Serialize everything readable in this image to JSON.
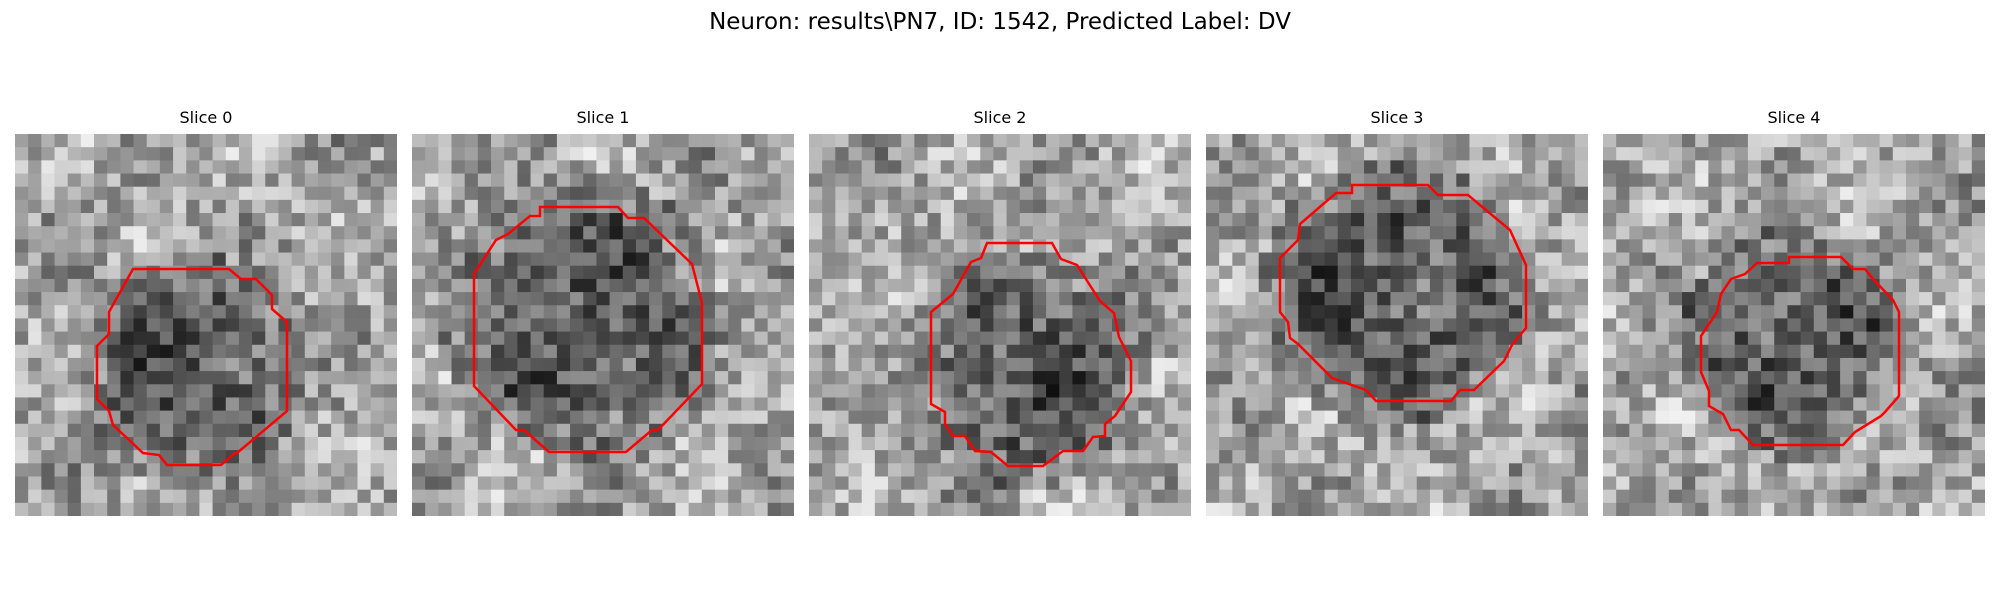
{
  "figure": {
    "title": "Neuron: results\\PN7, ID: 1542, Predicted Label: DV"
  },
  "colors": {
    "contour": "#ff0000",
    "background": "#ffffff"
  },
  "panels": [
    {
      "title": "Slice 0"
    },
    {
      "title": "Slice 1"
    },
    {
      "title": "Slice 2"
    },
    {
      "title": "Slice 3"
    },
    {
      "title": "Slice 4"
    }
  ]
}
